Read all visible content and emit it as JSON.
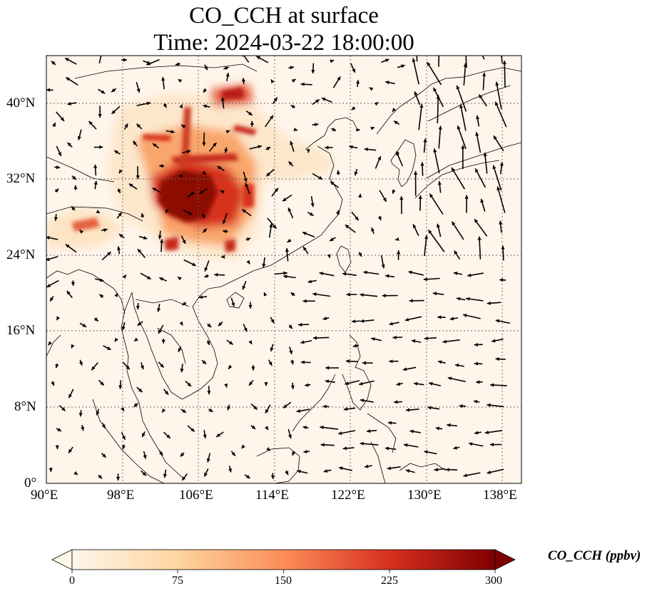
{
  "title": {
    "line1": "CO_CCH at surface",
    "line2": "Time: 2024-03-22 18:00:00"
  },
  "map": {
    "lon_range": [
      90,
      140
    ],
    "lat_range": [
      0,
      45
    ],
    "lon_ticks": [
      {
        "value": 90,
        "label": "90°E"
      },
      {
        "value": 98,
        "label": "98°E"
      },
      {
        "value": 106,
        "label": "106°E"
      },
      {
        "value": 114,
        "label": "114°E"
      },
      {
        "value": 122,
        "label": "122°E"
      },
      {
        "value": 130,
        "label": "130°E"
      },
      {
        "value": 138,
        "label": "138°E"
      }
    ],
    "lat_ticks": [
      {
        "value": 0,
        "label": "0°"
      },
      {
        "value": 8,
        "label": "8°N"
      },
      {
        "value": 16,
        "label": "16°N"
      },
      {
        "value": 24,
        "label": "24°N"
      },
      {
        "value": 32,
        "label": "32°N"
      },
      {
        "value": 40,
        "label": "40°N"
      }
    ],
    "gridlines": "dotted",
    "field_colormap": "OrRd",
    "vectors": "wind"
  },
  "colorbar": {
    "label": "CO_CCH (ppbv)",
    "ticks": [
      "0",
      "75",
      "150",
      "225",
      "300"
    ],
    "range": [
      0,
      300
    ],
    "extend": "both",
    "colors": [
      "#fff7ec",
      "#fdd49e",
      "#fc8d59",
      "#d7301f",
      "#7f0000"
    ]
  }
}
